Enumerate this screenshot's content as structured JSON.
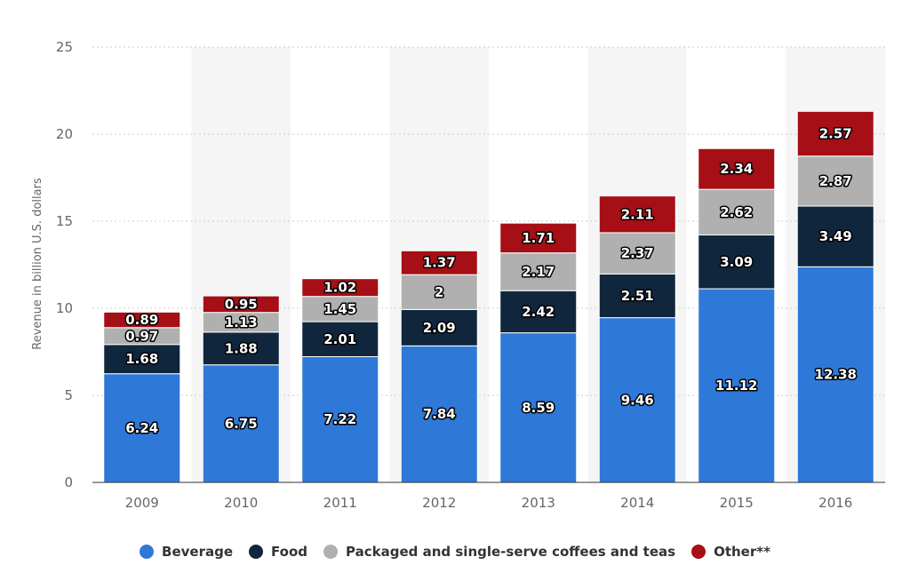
{
  "chart_data": {
    "type": "bar",
    "stacked": true,
    "categories": [
      "2009",
      "2010",
      "2011",
      "2012",
      "2013",
      "2014",
      "2015",
      "2016"
    ],
    "series": [
      {
        "name": "Beverage",
        "color": "#2e78d8",
        "values": [
          6.24,
          6.75,
          7.22,
          7.84,
          8.59,
          9.46,
          11.12,
          12.38
        ]
      },
      {
        "name": "Food",
        "color": "#10263d",
        "values": [
          1.68,
          1.88,
          2.01,
          2.09,
          2.42,
          2.51,
          3.09,
          3.49
        ]
      },
      {
        "name": "Packaged and single-serve coffees and teas",
        "color": "#b0b0b0",
        "values": [
          0.97,
          1.13,
          1.45,
          2,
          2.17,
          2.37,
          2.62,
          2.87
        ]
      },
      {
        "name": "Other**",
        "color": "#a50f15",
        "values": [
          0.89,
          0.95,
          1.02,
          1.37,
          1.71,
          2.11,
          2.34,
          2.57
        ]
      }
    ],
    "ylabel": "Revenue in billion U.S. dollars",
    "xlabel": "",
    "ylim": [
      0,
      25
    ],
    "yticks": [
      0,
      5,
      10,
      15,
      20,
      25
    ],
    "grid": true,
    "legend_position": "bottom"
  }
}
